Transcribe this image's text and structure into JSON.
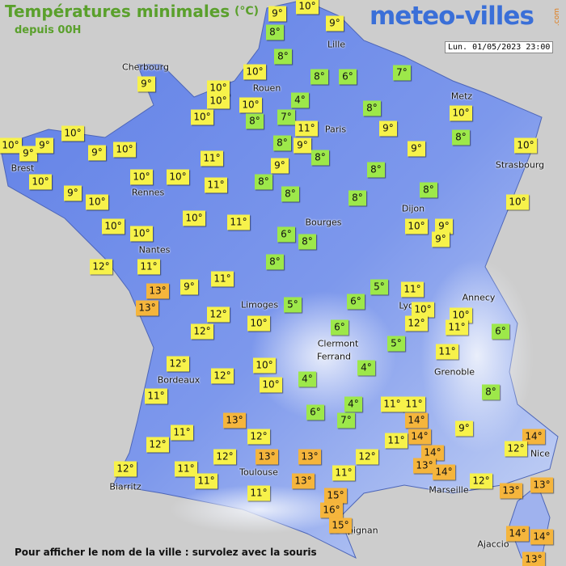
{
  "header": {
    "title": "Températures minimales",
    "unit": "(°C)",
    "subtitle": "depuis 00H",
    "logo": "meteo-villes",
    "logo_suffix": ".com",
    "timestamp": "Lun. 01/05/2023 23:00"
  },
  "cities": [
    "Lille",
    "Cherbourg",
    "Rouen",
    "Metz",
    "Paris",
    "Brest",
    "Strasbourg",
    "Rennes",
    "Dijon",
    "Bourges",
    "Nantes",
    "Annecy",
    "Limoges",
    "Lyon",
    "Clermont",
    "Ferrand",
    "Grenoble",
    "Bordeaux",
    "Nice",
    "Toulouse",
    "Marseille",
    "Biarritz",
    "Perpignan",
    "Ajaccio"
  ],
  "temperatures": [
    "9°",
    "10°",
    "8°",
    "9°",
    "8°",
    "10°",
    "8°",
    "6°",
    "7°",
    "9°",
    "10°",
    "10°",
    "10°",
    "4°",
    "8°",
    "10°",
    "10°",
    "8°",
    "7°",
    "11°",
    "9°",
    "8°",
    "10°",
    "10°",
    "9°",
    "9°",
    "9°",
    "10°",
    "8°",
    "9°",
    "9°",
    "10°",
    "11°",
    "8°",
    "9°",
    "8°",
    "10°",
    "10°",
    "10°",
    "11°",
    "8°",
    "9°",
    "8°",
    "8°",
    "8°",
    "10°",
    "10°",
    "10°",
    "11°",
    "10°",
    "10°",
    "6°",
    "8°",
    "10°",
    "9°",
    "9°",
    "12°",
    "11°",
    "8°",
    "9°",
    "11°",
    "5°",
    "11°",
    "13°",
    "13°",
    "6°",
    "5°",
    "10°",
    "12°",
    "10°",
    "12°",
    "12°",
    "11°",
    "6°",
    "10°",
    "6°",
    "5°",
    "11°",
    "12°",
    "4°",
    "10°",
    "12°",
    "10°",
    "4°",
    "11°",
    "8°",
    "4°",
    "11°",
    "11°",
    "6°",
    "7°",
    "13°",
    "14°",
    "9°",
    "11°",
    "14°",
    "14°",
    "11°",
    "12°",
    "12°",
    "12°",
    "12°",
    "13°",
    "13°",
    "12°",
    "14°",
    "13°",
    "14°",
    "11°",
    "11°",
    "12°",
    "11°",
    "13°",
    "12°",
    "13°",
    "13°",
    "11°",
    "15°",
    "16°",
    "15°",
    "14°",
    "14°",
    "13°"
  ],
  "footer": "Pour afficher le nom de la ville : survolez avec la souris"
}
